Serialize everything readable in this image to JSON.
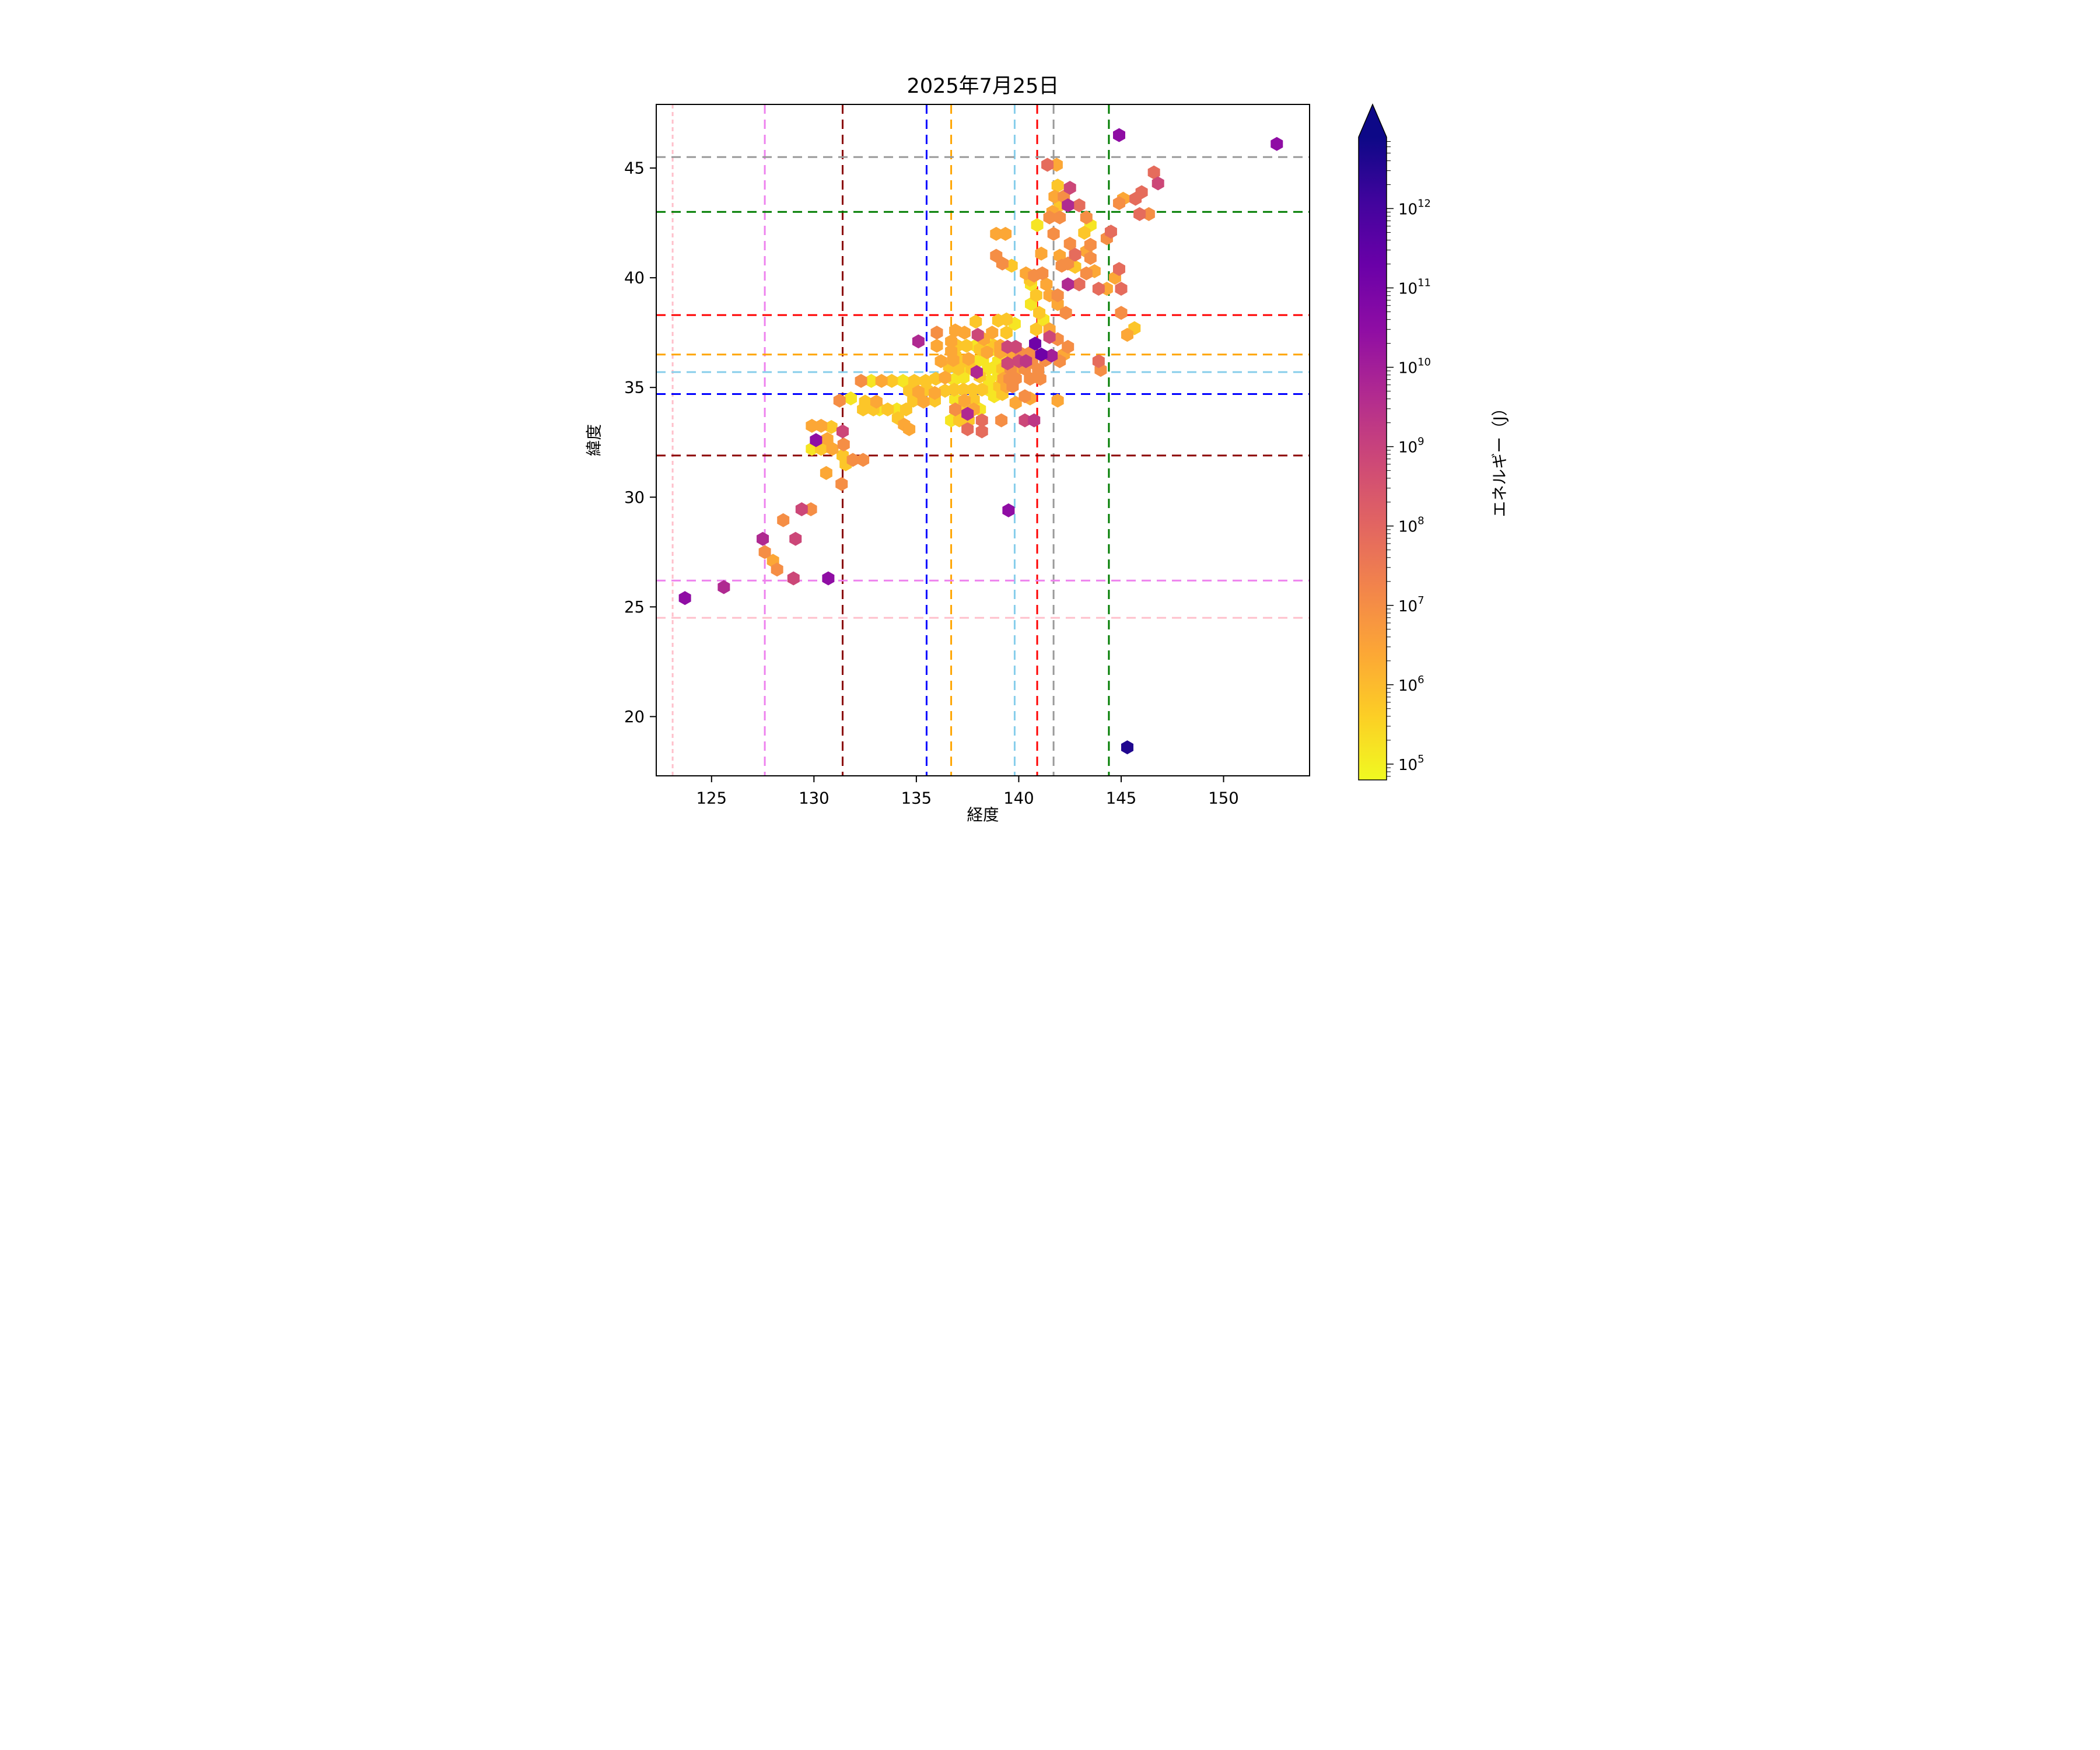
{
  "title": "2025年7月25日",
  "axes": {
    "xlabel": "経度",
    "ylabel": "緯度",
    "xticks": [
      125,
      130,
      135,
      140,
      145,
      150
    ],
    "yticks": [
      20,
      25,
      30,
      35,
      40,
      45
    ],
    "xlim": [
      122.3,
      154.2
    ],
    "ylim": [
      17.3,
      47.9
    ]
  },
  "colorbar": {
    "label": "エネルギー（J）",
    "major_tick_exponents": [
      12,
      11,
      10,
      9,
      8,
      7,
      6,
      5
    ],
    "log_min": 4.8,
    "log_max": 12.9,
    "extend": "max",
    "colormap": "plasma_r"
  },
  "reference_lines": {
    "vertical": [
      {
        "lon": 123.1,
        "color": "#ffc0cb",
        "dash": "short"
      },
      {
        "lon": 127.6,
        "color": "#ee82ee",
        "dash": "long"
      },
      {
        "lon": 131.4,
        "color": "#8b0000",
        "dash": "long"
      },
      {
        "lon": 135.5,
        "color": "#0000ff",
        "dash": "long"
      },
      {
        "lon": 136.7,
        "color": "#ffa500",
        "dash": "long"
      },
      {
        "lon": 139.8,
        "color": "#87ceeb",
        "dash": "long"
      },
      {
        "lon": 140.9,
        "color": "#ff0000",
        "dash": "long"
      },
      {
        "lon": 141.7,
        "color": "#9a9a9a",
        "dash": "long"
      },
      {
        "lon": 144.4,
        "color": "#007d00",
        "dash": "long"
      }
    ],
    "horizontal": [
      {
        "lat": 45.5,
        "color": "#9a9a9a",
        "dash": "long"
      },
      {
        "lat": 43.0,
        "color": "#007d00",
        "dash": "long"
      },
      {
        "lat": 38.3,
        "color": "#ff0000",
        "dash": "long"
      },
      {
        "lat": 36.5,
        "color": "#ffa500",
        "dash": "long"
      },
      {
        "lat": 35.7,
        "color": "#87ceeb",
        "dash": "long"
      },
      {
        "lat": 34.7,
        "color": "#0000ff",
        "dash": "long"
      },
      {
        "lat": 31.9,
        "color": "#8b0000",
        "dash": "long"
      },
      {
        "lat": 26.2,
        "color": "#ee82ee",
        "dash": "long"
      },
      {
        "lat": 24.5,
        "color": "#ffc0cb",
        "dash": "long"
      }
    ]
  },
  "chart_data": {
    "type": "hexbin",
    "title": "2025年7月25日",
    "xlabel": "経度",
    "ylabel": "緯度",
    "value_label": "エネルギー（J）",
    "value_scale": "log",
    "xlim": [
      122.3,
      154.2
    ],
    "ylim": [
      17.3,
      47.9
    ],
    "grid": false,
    "points": [
      [
        144.9,
        46.5,
        30000000000
      ],
      [
        152.6,
        46.1,
        30000000000
      ],
      [
        141.4,
        45.15,
        70000000
      ],
      [
        141.85,
        45.15,
        2500000
      ],
      [
        141.9,
        44.2,
        600000
      ],
      [
        142.5,
        44.1,
        700000000
      ],
      [
        146.6,
        44.8,
        70000000
      ],
      [
        146.8,
        44.3,
        700000000
      ],
      [
        146.0,
        43.9,
        70000000
      ],
      [
        142.2,
        43.7,
        10000000
      ],
      [
        141.75,
        43.7,
        2500000
      ],
      [
        142.4,
        43.3,
        5000000000
      ],
      [
        142.95,
        43.3,
        70000000
      ],
      [
        142.0,
        43.3,
        600000
      ],
      [
        141.65,
        43.0,
        2500000
      ],
      [
        145.1,
        43.6,
        2500000
      ],
      [
        145.7,
        43.6,
        70000000
      ],
      [
        144.9,
        43.4,
        10000000
      ],
      [
        141.5,
        42.75,
        10000000
      ],
      [
        142.0,
        42.75,
        10000000
      ],
      [
        143.3,
        42.75,
        10000000
      ],
      [
        145.9,
        42.9,
        70000000
      ],
      [
        146.35,
        42.9,
        10000000
      ],
      [
        140.9,
        42.4,
        150000
      ],
      [
        143.5,
        42.4,
        150000
      ],
      [
        143.2,
        42.05,
        600000
      ],
      [
        144.5,
        42.1,
        70000000
      ],
      [
        144.3,
        41.8,
        10000000
      ],
      [
        138.9,
        42.0,
        2500000
      ],
      [
        139.35,
        42.0,
        2500000
      ],
      [
        141.7,
        42.0,
        10000000
      ],
      [
        142.5,
        41.55,
        10000000
      ],
      [
        143.5,
        41.5,
        10000000
      ],
      [
        138.9,
        41.0,
        10000000
      ],
      [
        141.1,
        41.1,
        2500000
      ],
      [
        142.0,
        41.0,
        2500000
      ],
      [
        142.75,
        41.05,
        70000000
      ],
      [
        143.3,
        41.2,
        2500000
      ],
      [
        143.5,
        40.9,
        10000000
      ],
      [
        139.2,
        40.65,
        10000000
      ],
      [
        139.65,
        40.55,
        600000
      ],
      [
        142.1,
        40.55,
        10000000
      ],
      [
        142.4,
        40.65,
        10000000
      ],
      [
        142.75,
        40.5,
        600000
      ],
      [
        140.35,
        40.2,
        2500000
      ],
      [
        140.75,
        40.1,
        10000000
      ],
      [
        141.15,
        40.2,
        10000000
      ],
      [
        143.3,
        40.2,
        10000000
      ],
      [
        143.7,
        40.3,
        2500000
      ],
      [
        144.9,
        40.4,
        70000000
      ],
      [
        144.7,
        40.0,
        2500000
      ],
      [
        142.4,
        39.7,
        5000000000
      ],
      [
        142.95,
        39.7,
        70000000
      ],
      [
        140.55,
        39.9,
        600000
      ],
      [
        140.6,
        39.7,
        150000
      ],
      [
        141.35,
        39.7,
        2500000
      ],
      [
        140.85,
        39.2,
        600000
      ],
      [
        141.5,
        39.2,
        2500000
      ],
      [
        141.9,
        39.2,
        10000000
      ],
      [
        143.9,
        39.5,
        70000000
      ],
      [
        144.3,
        39.5,
        2500000
      ],
      [
        145.0,
        39.5,
        70000000
      ],
      [
        140.6,
        38.8,
        150000
      ],
      [
        141.9,
        38.8,
        2500000
      ],
      [
        141.0,
        38.4,
        600000
      ],
      [
        141.2,
        38.1,
        150000
      ],
      [
        142.3,
        38.4,
        10000000
      ],
      [
        145.0,
        38.4,
        10000000
      ],
      [
        145.3,
        37.4,
        2500000
      ],
      [
        145.65,
        37.7,
        600000
      ],
      [
        139.4,
        38.1,
        600000
      ],
      [
        139.0,
        38.05,
        600000
      ],
      [
        137.9,
        38.0,
        600000
      ],
      [
        139.8,
        37.9,
        150000
      ],
      [
        140.85,
        37.65,
        600000
      ],
      [
        141.5,
        37.65,
        2500000
      ],
      [
        135.1,
        37.1,
        5000000000
      ],
      [
        136.0,
        37.5,
        10000000
      ],
      [
        136.9,
        37.6,
        2500000
      ],
      [
        137.35,
        37.5,
        2500000
      ],
      [
        138.0,
        37.4,
        700000000
      ],
      [
        138.7,
        37.5,
        2500000
      ],
      [
        139.4,
        37.5,
        600000
      ],
      [
        136.7,
        37.1,
        2500000
      ],
      [
        138.3,
        37.2,
        2500000
      ],
      [
        138.6,
        37.0,
        150000
      ],
      [
        136.0,
        36.9,
        2500000
      ],
      [
        137.0,
        36.9,
        600000
      ],
      [
        137.45,
        36.9,
        600000
      ],
      [
        137.9,
        36.9,
        150000
      ],
      [
        138.35,
        36.9,
        150000
      ],
      [
        138.8,
        36.9,
        600000
      ],
      [
        139.1,
        36.9,
        2500000
      ],
      [
        139.45,
        36.85,
        700000000
      ],
      [
        139.85,
        36.85,
        700000000
      ],
      [
        136.7,
        36.65,
        2500000
      ],
      [
        136.9,
        36.45,
        600000
      ],
      [
        138.1,
        36.75,
        600000
      ],
      [
        138.45,
        36.6,
        2500000
      ],
      [
        138.9,
        36.7,
        150000
      ],
      [
        139.1,
        36.6,
        2500000
      ],
      [
        139.3,
        36.55,
        150000
      ],
      [
        139.7,
        36.55,
        2500000
      ],
      [
        140.1,
        36.55,
        10000000
      ],
      [
        140.5,
        36.55,
        10000000
      ],
      [
        140.8,
        37.0,
        150000000000
      ],
      [
        141.1,
        36.5,
        150000000000
      ],
      [
        141.6,
        36.45,
        10000000000
      ],
      [
        142.2,
        36.5,
        2500000
      ],
      [
        141.5,
        37.3,
        700000000
      ],
      [
        141.9,
        37.2,
        10000000
      ],
      [
        142.4,
        36.85,
        10000000
      ],
      [
        136.2,
        36.2,
        2500000
      ],
      [
        136.8,
        36.25,
        2500000
      ],
      [
        137.2,
        36.15,
        600000
      ],
      [
        137.55,
        36.3,
        2500000
      ],
      [
        137.9,
        36.15,
        150000
      ],
      [
        138.25,
        36.3,
        150000
      ],
      [
        139.0,
        36.2,
        150000
      ],
      [
        139.45,
        36.1,
        700000000
      ],
      [
        140.0,
        36.2,
        700000000
      ],
      [
        140.35,
        36.2,
        2000000000
      ],
      [
        140.65,
        36.15,
        10000000
      ],
      [
        141.3,
        36.25,
        10000000
      ],
      [
        142.0,
        36.2,
        10000000
      ],
      [
        143.9,
        36.2,
        70000000
      ],
      [
        144.0,
        35.8,
        10000000
      ],
      [
        136.6,
        35.95,
        600000
      ],
      [
        137.05,
        35.85,
        600000
      ],
      [
        137.4,
        35.95,
        150000
      ],
      [
        137.7,
        35.85,
        600000
      ],
      [
        137.95,
        35.7,
        5000000000
      ],
      [
        138.5,
        35.85,
        150000
      ],
      [
        138.85,
        35.95,
        150000
      ],
      [
        139.2,
        35.85,
        600000
      ],
      [
        139.6,
        35.85,
        10000000
      ],
      [
        139.95,
        35.85,
        2500000
      ],
      [
        140.3,
        35.85,
        10000000
      ],
      [
        140.95,
        35.8,
        10000000
      ],
      [
        132.3,
        35.3,
        10000000
      ],
      [
        132.8,
        35.3,
        150000
      ],
      [
        133.3,
        35.3,
        2500000
      ],
      [
        133.8,
        35.3,
        600000
      ],
      [
        134.35,
        35.3,
        150000
      ],
      [
        134.9,
        35.3,
        600000
      ],
      [
        135.45,
        35.3,
        600000
      ],
      [
        135.95,
        35.4,
        600000
      ],
      [
        136.4,
        35.45,
        2500000
      ],
      [
        136.85,
        35.35,
        150000
      ],
      [
        137.3,
        35.45,
        150000
      ],
      [
        138.1,
        35.5,
        600000
      ],
      [
        138.55,
        35.3,
        150000
      ],
      [
        139.0,
        35.55,
        150000
      ],
      [
        139.25,
        35.4,
        2500000
      ],
      [
        139.55,
        35.4,
        10000000
      ],
      [
        139.85,
        35.4,
        10000000
      ],
      [
        140.55,
        35.4,
        10000000
      ],
      [
        141.05,
        35.4,
        10000000
      ],
      [
        134.65,
        34.85,
        600000
      ],
      [
        135.1,
        34.8,
        2500000
      ],
      [
        135.5,
        34.9,
        600000
      ],
      [
        135.9,
        34.75,
        2500000
      ],
      [
        136.4,
        34.85,
        600000
      ],
      [
        136.85,
        34.9,
        600000
      ],
      [
        137.3,
        34.9,
        600000
      ],
      [
        137.75,
        34.9,
        600000
      ],
      [
        138.2,
        34.9,
        600000
      ],
      [
        138.6,
        34.85,
        150000
      ],
      [
        139.05,
        35.05,
        600000
      ],
      [
        139.4,
        35.05,
        2500000
      ],
      [
        139.7,
        35.05,
        10000000
      ],
      [
        131.25,
        34.4,
        10000000
      ],
      [
        131.8,
        34.5,
        150000
      ],
      [
        132.5,
        34.35,
        600000
      ],
      [
        133.05,
        34.35,
        2500000
      ],
      [
        134.85,
        34.4,
        600000
      ],
      [
        135.35,
        34.35,
        2500000
      ],
      [
        135.9,
        34.4,
        600000
      ],
      [
        136.9,
        34.45,
        150000
      ],
      [
        137.35,
        34.4,
        2500000
      ],
      [
        137.8,
        34.45,
        600000
      ],
      [
        138.8,
        34.6,
        150000
      ],
      [
        139.2,
        34.7,
        600000
      ],
      [
        139.85,
        34.3,
        2500000
      ],
      [
        140.3,
        34.6,
        10000000
      ],
      [
        140.55,
        34.5,
        2500000
      ],
      [
        141.9,
        34.4,
        2500000
      ],
      [
        132.4,
        34.0,
        600000
      ],
      [
        132.9,
        34.0,
        600000
      ],
      [
        133.2,
        34.0,
        150000
      ],
      [
        133.6,
        34.0,
        600000
      ],
      [
        134.05,
        34.0,
        150000
      ],
      [
        134.5,
        34.0,
        600000
      ],
      [
        136.9,
        34.0,
        10000000
      ],
      [
        137.3,
        34.0,
        600000
      ],
      [
        137.8,
        34.0,
        2500000
      ],
      [
        138.1,
        34.0,
        150000
      ],
      [
        134.1,
        33.6,
        600000
      ],
      [
        134.4,
        33.3,
        2500000
      ],
      [
        134.65,
        33.1,
        2500000
      ],
      [
        136.7,
        33.5,
        150000
      ],
      [
        137.1,
        33.5,
        600000
      ],
      [
        137.55,
        33.5,
        600000
      ],
      [
        137.5,
        33.8,
        5000000000
      ],
      [
        137.5,
        33.1,
        70000000
      ],
      [
        138.2,
        33.5,
        70000000
      ],
      [
        138.2,
        33.0,
        70000000
      ],
      [
        139.15,
        33.5,
        10000000
      ],
      [
        140.3,
        33.5,
        700000000
      ],
      [
        140.75,
        33.5,
        2000000000
      ],
      [
        129.9,
        33.25,
        2500000
      ],
      [
        130.35,
        33.25,
        2500000
      ],
      [
        130.85,
        33.2,
        600000
      ],
      [
        131.4,
        33.0,
        700000000
      ],
      [
        130.1,
        32.6,
        30000000000
      ],
      [
        130.65,
        32.65,
        2500000
      ],
      [
        131.45,
        32.4,
        10000000
      ],
      [
        129.9,
        32.2,
        150000
      ],
      [
        130.35,
        32.2,
        600000
      ],
      [
        130.9,
        32.2,
        2500000
      ],
      [
        131.4,
        31.9,
        600000
      ],
      [
        131.9,
        31.7,
        10000000
      ],
      [
        132.4,
        31.7,
        10000000
      ],
      [
        131.55,
        31.5,
        600000
      ],
      [
        130.6,
        31.1,
        2500000
      ],
      [
        131.35,
        30.6,
        10000000
      ],
      [
        129.4,
        29.45,
        700000000
      ],
      [
        129.85,
        29.45,
        10000000
      ],
      [
        128.5,
        28.95,
        10000000
      ],
      [
        127.5,
        28.1,
        5000000000
      ],
      [
        129.1,
        28.1,
        700000000
      ],
      [
        127.6,
        27.5,
        10000000
      ],
      [
        128.0,
        27.1,
        2500000
      ],
      [
        128.2,
        26.7,
        10000000
      ],
      [
        129.0,
        26.3,
        700000000
      ],
      [
        130.7,
        26.3,
        30000000000
      ],
      [
        125.6,
        25.9,
        5000000000
      ],
      [
        123.7,
        25.4,
        30000000000
      ],
      [
        139.5,
        29.4,
        30000000000
      ],
      [
        145.3,
        18.6,
        4000000000000
      ]
    ]
  },
  "plasma_stops": [
    "#0d0887",
    "#41049d",
    "#6a00a8",
    "#8f0da4",
    "#b12a90",
    "#cc4778",
    "#e16462",
    "#f2844b",
    "#fca636",
    "#fcce25",
    "#f0f921"
  ]
}
